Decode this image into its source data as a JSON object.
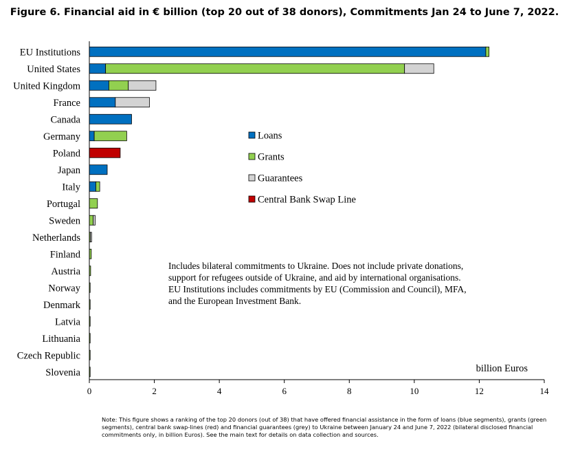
{
  "chart_data": {
    "type": "bar",
    "orientation": "horizontal",
    "stacked": true,
    "title": "Figure 6. Financial aid in € billion (top 20 out of 38 donors), Commitments Jan 24 to June 7, 2022.",
    "xlabel": "billion Euros",
    "ylabel": "",
    "xlim": [
      0,
      14
    ],
    "xticks": [
      "0",
      "2",
      "4",
      "6",
      "8",
      "10",
      "12",
      "14"
    ],
    "grid": false,
    "legend_position": "center-right",
    "categories": [
      "EU Institutions",
      "United States",
      "United Kingdom",
      "France",
      "Canada",
      "Germany",
      "Poland",
      "Japan",
      "Italy",
      "Portugal",
      "Sweden",
      "Netherlands",
      "Finland",
      "Austria",
      "Norway",
      "Denmark",
      "Latvia",
      "Lithuania",
      "Czech Republic",
      "Slovenia"
    ],
    "series": [
      {
        "name": "Loans",
        "color": "#0070c0",
        "values": [
          12.2,
          0.5,
          0.6,
          0.8,
          1.3,
          0.15,
          0,
          0.55,
          0.2,
          0,
          0,
          0,
          0,
          0,
          0,
          0,
          0,
          0,
          0,
          0
        ]
      },
      {
        "name": "Grants",
        "color": "#92d050",
        "values": [
          0.1,
          9.2,
          0.6,
          0,
          0,
          1.0,
          0,
          0,
          0.12,
          0.25,
          0.12,
          0.03,
          0.06,
          0.04,
          0.02,
          0.02,
          0.02,
          0.02,
          0.02,
          0.02
        ]
      },
      {
        "name": "Guarantees",
        "color": "#d3d3d3",
        "values": [
          0,
          0.9,
          0.85,
          1.05,
          0,
          0,
          0,
          0,
          0,
          0,
          0.06,
          0.04,
          0,
          0,
          0,
          0,
          0,
          0,
          0,
          0
        ]
      },
      {
        "name": "Central Bank Swap Line",
        "color": "#c00000",
        "values": [
          0,
          0,
          0,
          0,
          0,
          0,
          0.95,
          0,
          0,
          0,
          0,
          0,
          0,
          0,
          0,
          0,
          0,
          0,
          0,
          0
        ]
      }
    ]
  },
  "annotation_lines": [
    "Includes bilateral commitments to Ukraine. Does not include private donations,",
    "support for refugees outside of Ukraine, and aid by international organisations.",
    "EU Institutions includes commitments by EU (Commission and Council), MFA,",
    "and the European Investment Bank."
  ],
  "note_lines": [
    "Note: This figure shows a ranking of the top 20 donors (out of 38) that have offered financial assistance in the form of loans (blue segments), grants (green",
    "segments), central bank swap-lines (red) and financial guarantees (grey) to Ukraine between January 24 and June 7, 2022 (bilateral disclosed financial",
    "commitments only, in billion Euros). See the main text for details on data collection and sources."
  ]
}
